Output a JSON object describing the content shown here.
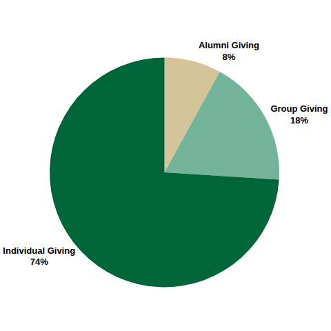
{
  "chart_data": {
    "type": "pie",
    "categories": [
      "Alumni Giving",
      "Group Giving",
      "Individual Giving"
    ],
    "values": [
      8,
      18,
      74
    ],
    "value_labels": [
      "8%",
      "18%",
      "74%"
    ],
    "colors": [
      "#d4c497",
      "#73b39a",
      "#00663a"
    ],
    "data_labels": true
  }
}
